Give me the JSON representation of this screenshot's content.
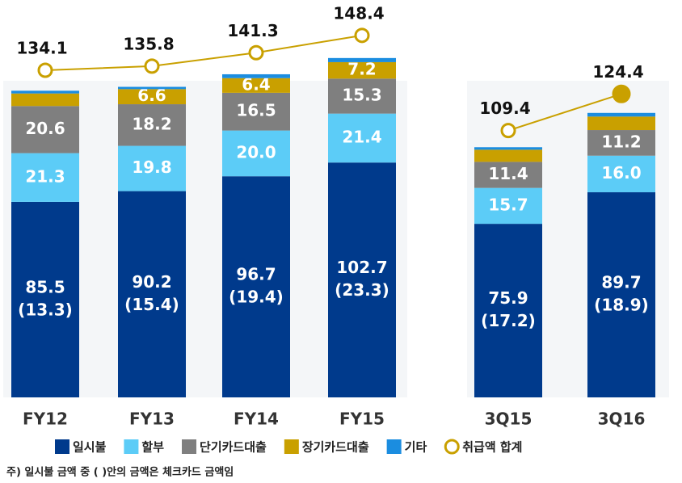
{
  "chart_data": {
    "type": "bar",
    "categories": [
      "FY12",
      "FY13",
      "FY14",
      "FY15",
      "3Q15",
      "3Q16"
    ],
    "series": [
      {
        "name": "일시불",
        "color": "#003a8c",
        "values": [
          85.5,
          90.2,
          96.7,
          102.7,
          75.9,
          89.7
        ]
      },
      {
        "name": "할부",
        "color": "#5cccf7",
        "values": [
          21.3,
          19.8,
          20,
          21.4,
          15.7,
          16
        ],
        "value_labels": [
          "21.3",
          "19.8",
          "20.0",
          "21.4",
          "15.7",
          "16.0"
        ]
      },
      {
        "name": "단기카드대출",
        "color": "#7f7f7f",
        "values": [
          20.6,
          18.2,
          16.5,
          15.3,
          11.4,
          11.2
        ]
      },
      {
        "name": "장기카드대출",
        "color": "#c9a000",
        "values": [
          5.5,
          6.6,
          6.4,
          7.2,
          5.3,
          5.9
        ]
      },
      {
        "name": "기타",
        "color": "#1b8de0",
        "values": [
          1.2,
          1.0,
          1.7,
          1.8,
          1.1,
          1.6
        ]
      },
      {
        "name": "취급액 합계",
        "color": "#c9a000",
        "type": "line",
        "axis": "y2",
        "values": [
          134.1,
          135.8,
          141.3,
          148.4,
          109.4,
          124.4
        ]
      }
    ],
    "check_card_labels": [
      "(13.3)",
      "(15.4)",
      "(19.4)",
      "(23.3)",
      "(17.2)",
      "(18.9)"
    ],
    "ylim": [
      0,
      160
    ],
    "y2lim": [
      0,
      150
    ],
    "note": "주) 일시불 금액 중 ( )안의 금액은 체크카드 금액임"
  }
}
